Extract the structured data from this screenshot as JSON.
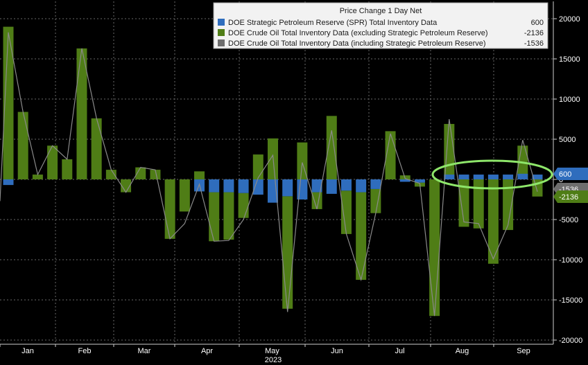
{
  "chart_data": {
    "type": "bar",
    "title": "Price Change 1 Day Net",
    "ylim": [
      -20000,
      22000
    ],
    "yticks": [
      20000,
      15000,
      10000,
      5000,
      0,
      -5000,
      -10000,
      -15000,
      -20000
    ],
    "ytick_labels": [
      "20000",
      "15000",
      "10000",
      "5000",
      "0",
      "-5000",
      "-10000",
      "-15000",
      "-20000"
    ],
    "xtick_labels": [
      "Jan",
      "Feb",
      "Mar",
      "Apr",
      "May",
      "Jun",
      "Jul",
      "Aug",
      "Sep"
    ],
    "year_label": "2023",
    "grid": true,
    "legend_position": "top-right",
    "legend": [
      {
        "name": "DOE Strategic Petroleum Reserve (SPR) Total Inventory Data",
        "value": "600",
        "color": "#2f6dbd"
      },
      {
        "name": "DOE Crude Oil Total Inventory Data (excluding Strategic Petroleum Reserve)",
        "value": "-2136",
        "color": "#4f7d16"
      },
      {
        "name": "DOE Crude Oil Total Inventory Data (including Strategic Petroleum Reserve)",
        "value": "-1536",
        "color": "#6e6e6e"
      }
    ],
    "series": [
      {
        "name": "DOE Strategic Petroleum Reserve (SPR) Total Inventory Data",
        "values": [
          -700,
          0,
          0,
          0,
          0,
          0,
          0,
          0,
          0,
          0,
          0,
          0,
          0,
          -1500,
          -1600,
          -1600,
          -1700,
          -1900,
          -2900,
          -2100,
          -2500,
          -1600,
          -1800,
          -1400,
          -1600,
          -1200,
          0,
          -300,
          -400,
          0,
          600,
          600,
          600,
          600,
          600,
          700,
          600
        ]
      },
      {
        "name": "DOE Crude Oil Total Inventory Data (excluding Strategic Petroleum Reserve)",
        "values": [
          19000,
          8400,
          600,
          4200,
          2500,
          16300,
          7600,
          1200,
          -1600,
          1500,
          1200,
          -7400,
          -4000,
          1000,
          -6100,
          -5900,
          -3100,
          3100,
          5100,
          -14000,
          4600,
          -2100,
          7900,
          -5400,
          -10900,
          -3000,
          6000,
          500,
          -500,
          -17000,
          6900,
          -5900,
          -6100,
          -10500,
          -6300,
          4200,
          -2136
        ]
      },
      {
        "name": "DOE Crude Oil Total Inventory Data (including Strategic Petroleum Reserve)",
        "values": [
          18300,
          8400,
          600,
          4200,
          2500,
          16300,
          7600,
          1200,
          -1600,
          1500,
          1200,
          -7400,
          -5500,
          -600,
          -7700,
          -7600,
          -5000,
          200,
          3000,
          -16500,
          2100,
          -3700,
          6100,
          -6800,
          -12500,
          -4200,
          5700,
          100,
          -500,
          -17000,
          7500,
          -5300,
          -5500,
          -9900,
          -5700,
          4900,
          -1536
        ]
      }
    ],
    "last_value_tags": [
      {
        "text": "600",
        "color": "#2f6dbd"
      },
      {
        "text": "-2136",
        "color": "#4f7d16"
      },
      {
        "text": "-1536",
        "color": "#6e6e6e"
      }
    ]
  }
}
